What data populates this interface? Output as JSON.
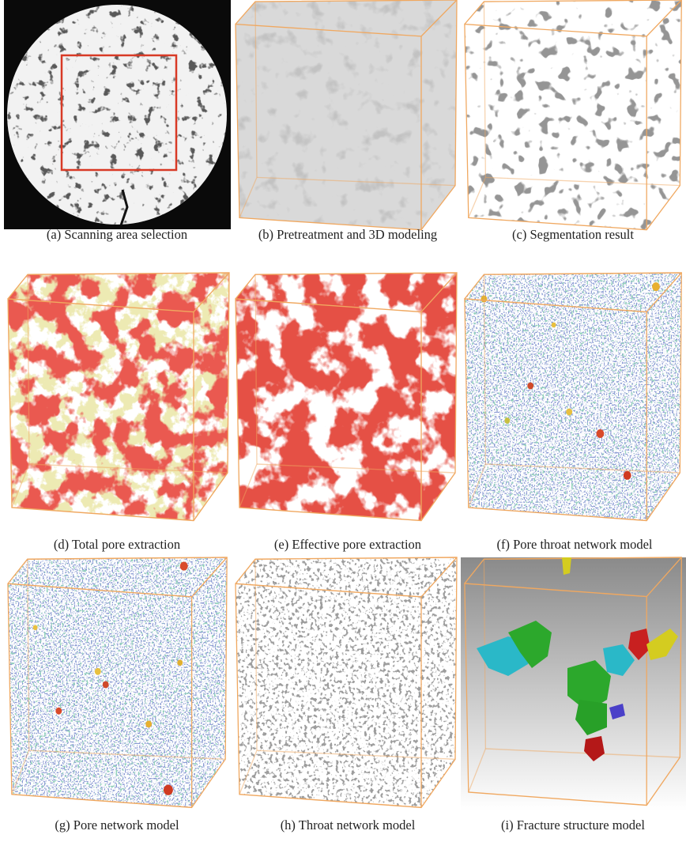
{
  "panels": [
    {
      "caption": "(a) Scanning area selection"
    },
    {
      "caption": "(b) Pretreatment and 3D modeling"
    },
    {
      "caption": "(c) Segmentation result"
    },
    {
      "caption": "(d) Total pore extraction"
    },
    {
      "caption": "(e) Effective pore extraction"
    },
    {
      "caption": "(f) Pore throat network model"
    },
    {
      "caption": "(g) Pore network model"
    },
    {
      "caption": "(h) Throat network model"
    },
    {
      "caption": "(i) Fracture structure model"
    }
  ]
}
